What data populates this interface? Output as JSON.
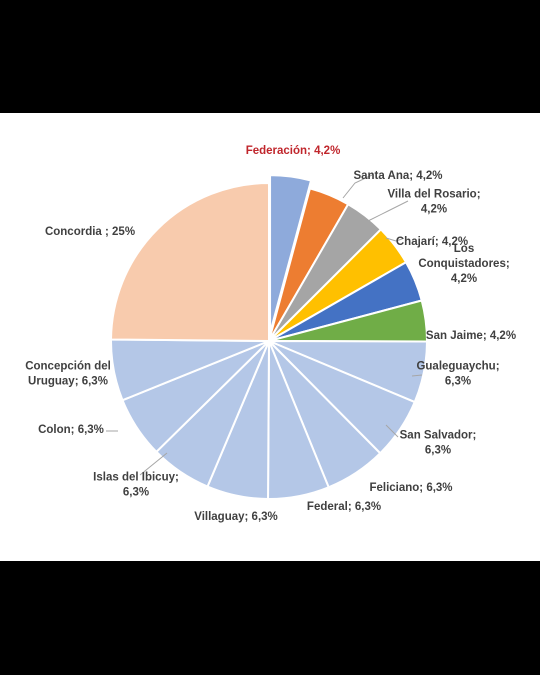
{
  "chart_data": {
    "type": "pie",
    "title": "",
    "slices": [
      {
        "name": "Federación",
        "value": 4.2,
        "label_lines": [
          "Federación; 4,2%"
        ],
        "color": "#8eaadb",
        "exploded": true,
        "highlight_color": "#c0262c"
      },
      {
        "name": "Santa Ana",
        "value": 4.2,
        "label_lines": [
          "Santa Ana; 4,2%"
        ],
        "color": "#ed7d31"
      },
      {
        "name": "Villa del Rosario",
        "value": 4.2,
        "label_lines": [
          "Villa del Rosario;",
          "4,2%"
        ],
        "color": "#a5a5a5"
      },
      {
        "name": "Chajarí",
        "value": 4.2,
        "label_lines": [
          "Chajarí; 4,2%"
        ],
        "color": "#ffc000"
      },
      {
        "name": "Los Conquistadores",
        "value": 4.2,
        "label_lines": [
          "Los",
          "Conquistadores;",
          "4,2%"
        ],
        "color": "#4472c4"
      },
      {
        "name": "San Jaime",
        "value": 4.2,
        "label_lines": [
          "San Jaime; 4,2%"
        ],
        "color": "#70ad47"
      },
      {
        "name": "Gualeguaychu",
        "value": 6.3,
        "label_lines": [
          "Gualeguaychu;",
          "6,3%"
        ],
        "color": "#b4c7e7"
      },
      {
        "name": "San Salvador",
        "value": 6.3,
        "label_lines": [
          "San Salvador;",
          "6,3%"
        ],
        "color": "#b4c7e7"
      },
      {
        "name": "Feliciano",
        "value": 6.3,
        "label_lines": [
          "Feliciano; 6,3%"
        ],
        "color": "#b4c7e7"
      },
      {
        "name": "Federal",
        "value": 6.3,
        "label_lines": [
          "Federal; 6,3%"
        ],
        "color": "#b4c7e7"
      },
      {
        "name": "Villaguay",
        "value": 6.3,
        "label_lines": [
          "Villaguay; 6,3%"
        ],
        "color": "#b4c7e7"
      },
      {
        "name": "Islas del Ibicuy",
        "value": 6.3,
        "label_lines": [
          "Islas del Ibicuy;",
          "6,3%"
        ],
        "color": "#b4c7e7"
      },
      {
        "name": "Colon",
        "value": 6.3,
        "label_lines": [
          "Colon; 6,3%"
        ],
        "color": "#b4c7e7"
      },
      {
        "name": "Concepción del Uruguay",
        "value": 6.3,
        "label_lines": [
          "Concepción del",
          "Uruguay; 6,3%"
        ],
        "color": "#b4c7e7"
      },
      {
        "name": "Concordia",
        "value": 25,
        "label_lines": [
          "Concordia ; 25%"
        ],
        "color": "#f8cbad"
      }
    ]
  }
}
